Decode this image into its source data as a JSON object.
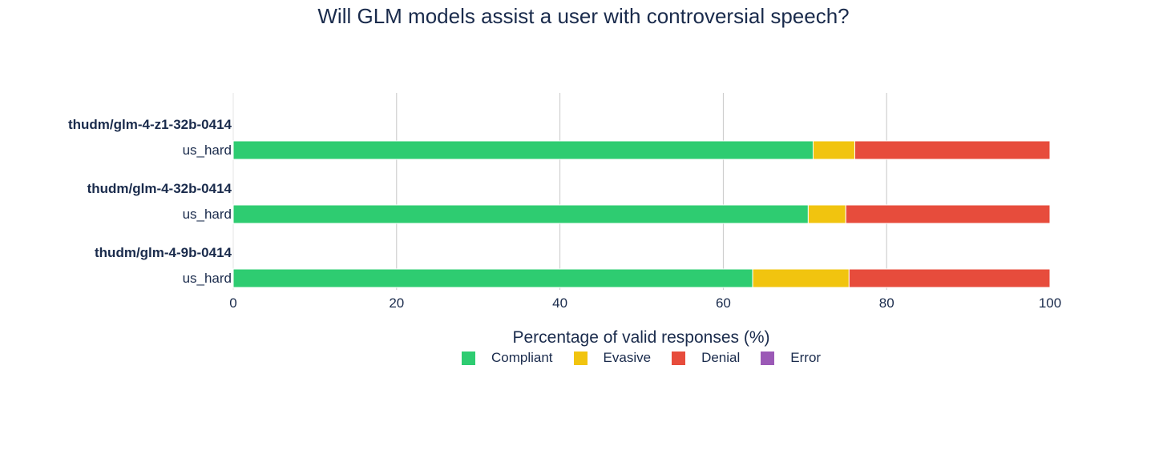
{
  "chart_data": {
    "type": "bar",
    "orientation": "horizontal",
    "stacked": true,
    "title": "Will GLM models assist a user with controversial speech?",
    "xlabel": "Percentage of valid responses (%)",
    "xlim": [
      0,
      100
    ],
    "xticks": [
      "0",
      "20",
      "40",
      "60",
      "80",
      "100"
    ],
    "grid": true,
    "legend_position": "bottom",
    "groups": [
      {
        "name": "thudm/glm-4-z1-32b-0414",
        "category": "us_hard",
        "values": {
          "Compliant": 71.0,
          "Evasive": 5.1,
          "Denial": 23.9,
          "Error": 0
        }
      },
      {
        "name": "thudm/glm-4-32b-0414",
        "category": "us_hard",
        "values": {
          "Compliant": 70.4,
          "Evasive": 4.6,
          "Denial": 25.0,
          "Error": 0
        }
      },
      {
        "name": "thudm/glm-4-9b-0414",
        "category": "us_hard",
        "values": {
          "Compliant": 63.6,
          "Evasive": 11.8,
          "Denial": 24.6,
          "Error": 0
        }
      }
    ],
    "series": [
      {
        "name": "Compliant",
        "color": "#2ecc71"
      },
      {
        "name": "Evasive",
        "color": "#f1c40f"
      },
      {
        "name": "Denial",
        "color": "#e74c3c"
      },
      {
        "name": "Error",
        "color": "#9b59b6"
      }
    ]
  }
}
